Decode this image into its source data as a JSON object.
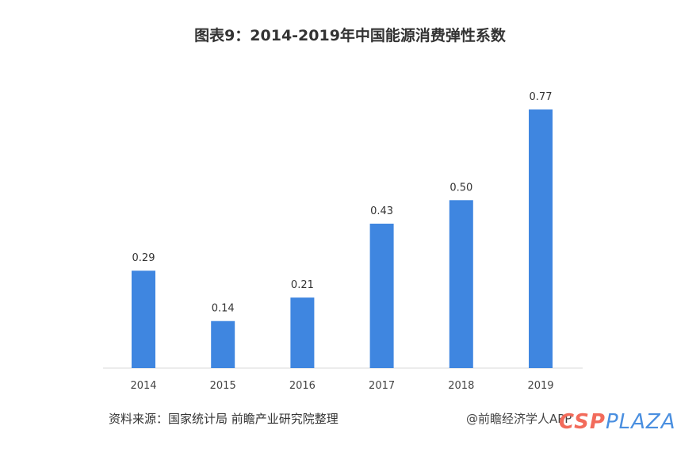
{
  "chart_data": {
    "type": "bar",
    "title": "图表9：2014-2019年中国能源消费弹性系数",
    "categories": [
      "2014",
      "2015",
      "2016",
      "2017",
      "2018",
      "2019"
    ],
    "values": [
      0.29,
      0.14,
      0.21,
      0.43,
      0.5,
      0.77
    ],
    "data_labels": [
      "0.29",
      "0.14",
      "0.21",
      "0.43",
      "0.50",
      "0.77"
    ],
    "xlabel": "",
    "ylabel": "",
    "ylim": [
      0,
      0.8
    ],
    "grid": false,
    "bar_color": "#3f86e0"
  },
  "footer": {
    "source": "资料来源：国家统计局 前瞻产业研究院整理",
    "credit": "@前瞻经济学人APP",
    "watermark_logo": "CSPPLAZA"
  }
}
